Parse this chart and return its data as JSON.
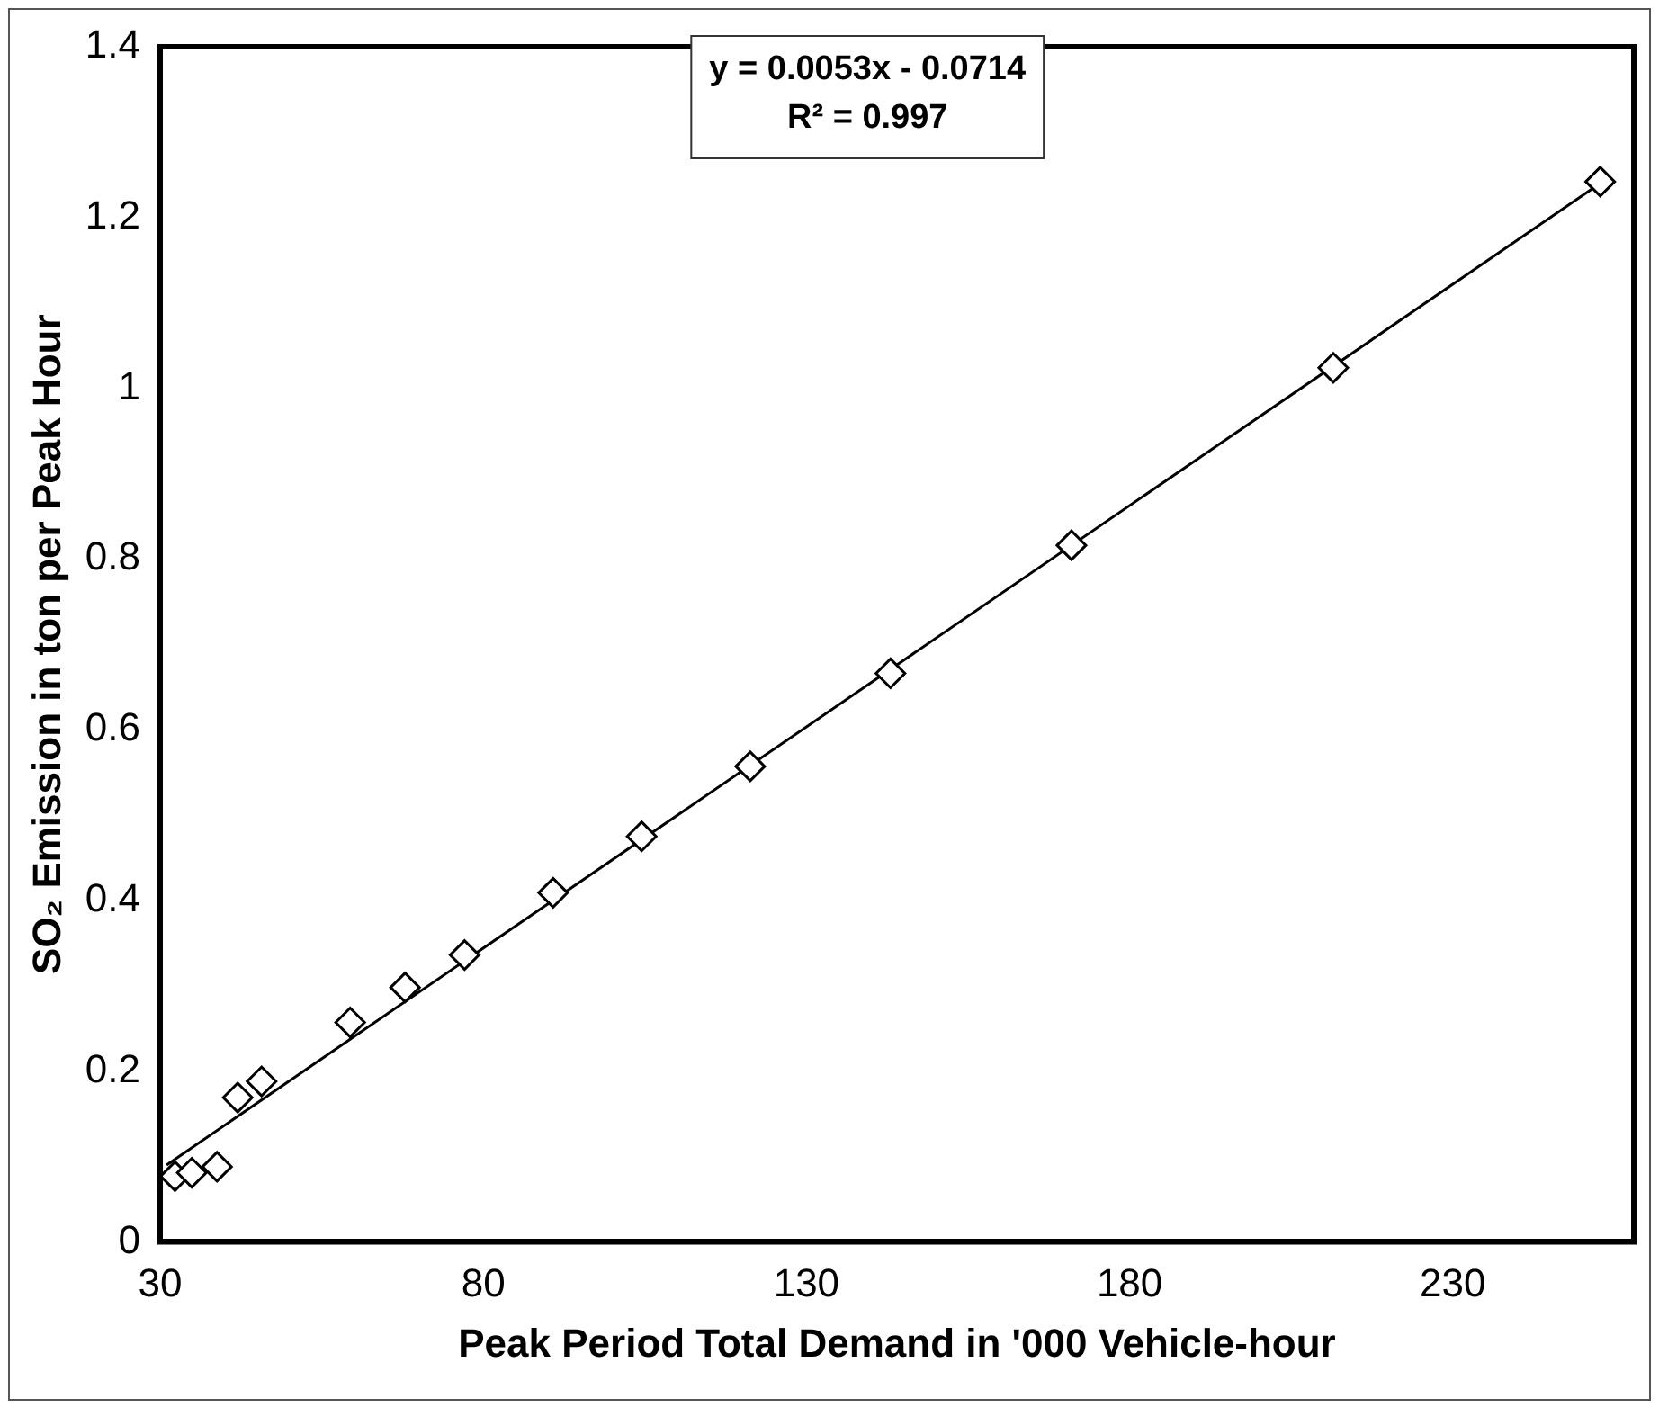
{
  "chart_data": {
    "type": "scatter",
    "xlabel": "Peak Period Total Demand in '000 Vehicle-hour",
    "ylabel": "SO₂ Emission in ton per Peak Hour",
    "annotations": [
      "y = 0.0053x - 0.0714",
      "R² = 0.997"
    ],
    "xlim": [
      30,
      258
    ],
    "xticks": [
      30,
      80,
      130,
      180,
      230
    ],
    "ylim": [
      0,
      1.4
    ],
    "yticks": [
      0,
      0.2,
      0.4,
      0.6,
      0.8,
      1,
      1.2,
      1.4
    ],
    "grid": false,
    "legend": false,
    "series": [
      {
        "color": "#000000",
        "marker": "diamond",
        "x": [
          32.3,
          34.9,
          38.8,
          42,
          45.7,
          59.4,
          67.9,
          77.1,
          90.8,
          104.5,
          121.3,
          143,
          171,
          211.5,
          252.8
        ],
        "values": [
          0.077,
          0.081,
          0.088,
          0.169,
          0.188,
          0.257,
          0.298,
          0.336,
          0.409,
          0.475,
          0.557,
          0.666,
          0.816,
          1.024,
          1.242
        ]
      },
      {
        "type": "line",
        "color": "#000000",
        "marker": "none",
        "line_style": "solid",
        "x": [
          31,
          252.8
        ],
        "values": [
          0.09,
          1.24
        ]
      }
    ]
  }
}
